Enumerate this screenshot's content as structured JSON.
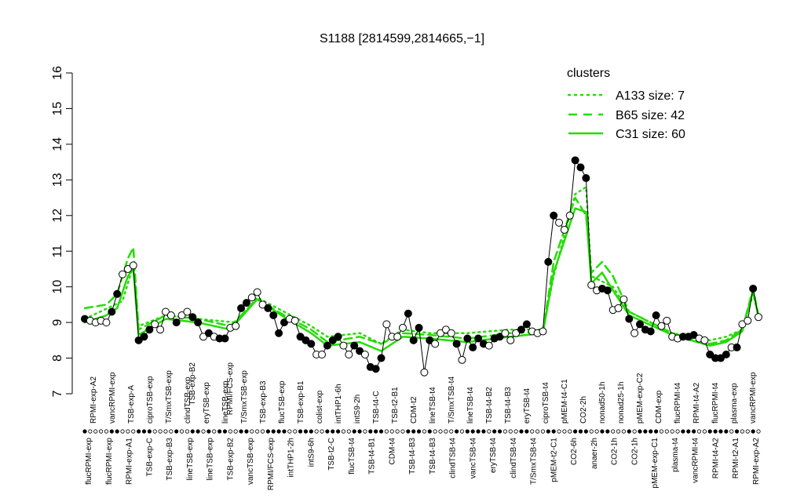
{
  "chart_data": {
    "type": "line",
    "title": "S1188 [2814599,2814665,−1]",
    "xlabel": "",
    "ylabel": "",
    "ylim": [
      7,
      16
    ],
    "yticks": [
      "7",
      "8",
      "9",
      "10",
      "11",
      "12",
      "13",
      "14",
      "15",
      "16"
    ],
    "grid": false,
    "legend": {
      "title": "clusters",
      "placement": "top-right",
      "color": "#22dd00",
      "entries": [
        {
          "label": "A133 size: 7",
          "style": "dotted"
        },
        {
          "label": "B65 size: 42",
          "style": "dashed"
        },
        {
          "label": "C31 size: 60",
          "style": "solid"
        }
      ]
    },
    "top_tick_labels": [
      "RPMI-exp-A2",
      "vancRPMI-exp",
      "TSB-exp-A",
      "ciproTSB-exp",
      "T/SmxTSB-exp",
      "clindTSB-exp",
      "eryTSB-exp",
      "lineTSB-exp",
      "T/SmxTSB-exp",
      "TSB-exp-B3",
      "flucTSB-exp",
      "TSB-exp-B1",
      "colist-exp",
      "intTHP1-6h",
      "intS9-2h",
      "TSB-t4-C",
      "TSB-t2-B1",
      "CDM-t2",
      "lineTSB-t4",
      "T/SmxTSB-t4",
      "lineTSB-t4",
      "TSB-t4-B2",
      "TSB-t4-B3",
      "eryTSB-t4",
      "ciproTSB-t4",
      "pMEM-t4-C1",
      "CO2-2h",
      "nonad50-1h",
      "nonad25-1h",
      "pMEM-exp-C2",
      "CDM-exp",
      "flucRPMI-t4",
      "RPMI-t4-A2",
      "flucRPMI-t4",
      "plasma-exp",
      "vancRPMI-exp"
    ],
    "bottom_tick_labels": [
      "flucRPMI-exp",
      "flucRPMI-exp",
      "RPMI-exp-A1",
      "TSB-exp-C",
      "TSB-exp-B3",
      "lineTSB-exp",
      "lineTSB-exp",
      "TSB-exp-B2",
      "vancTSB-exp",
      "RPMI/FCS-exp",
      "intTHP1-2h",
      "intS9-6h",
      "TSB-t2-C",
      "flucTSB-t4",
      "TSB-t4-B1",
      "CDM-t4",
      "TSB-t4-B3",
      "TSB-t4-B3",
      "clindTSB-t4",
      "vancTSB-t4",
      "eryTSB-t4",
      "clindTSB-t4",
      "T/SmxTSB-t4",
      "pMEM-t2-C1",
      "CO2-6h",
      "anaer-2h",
      "CO2-1h",
      "CO2-1h",
      "pMEM-exp-C1",
      "plasma-t4",
      "vancRPMI-t4",
      "RPMI-t4-A2",
      "RPMI-t2-A1",
      "RPMI-exp-A2"
    ],
    "overlap_tick_labels": [
      "TSB-exp-B2",
      "RPMI/FCS-exp"
    ],
    "points": [
      [
        1,
        9.1,
        1
      ],
      [
        2,
        9.05,
        0
      ],
      [
        3,
        9.0,
        0
      ],
      [
        4,
        9.05,
        0
      ],
      [
        5,
        9.0,
        0
      ],
      [
        6,
        9.3,
        1
      ],
      [
        7,
        9.8,
        1
      ],
      [
        8,
        10.35,
        0
      ],
      [
        9,
        10.5,
        0
      ],
      [
        10,
        10.6,
        0
      ],
      [
        11,
        8.5,
        1
      ],
      [
        12,
        8.6,
        1
      ],
      [
        13,
        8.8,
        1
      ],
      [
        14,
        8.95,
        0
      ],
      [
        15,
        8.8,
        0
      ],
      [
        16,
        9.3,
        0
      ],
      [
        17,
        9.2,
        0
      ],
      [
        18,
        9.0,
        1
      ],
      [
        19,
        9.2,
        0
      ],
      [
        20,
        9.3,
        0
      ],
      [
        21,
        9.15,
        1
      ],
      [
        22,
        9.0,
        1
      ],
      [
        23,
        8.6,
        0
      ],
      [
        24,
        8.7,
        1
      ],
      [
        25,
        8.6,
        0
      ],
      [
        26,
        8.55,
        1
      ],
      [
        27,
        8.55,
        1
      ],
      [
        28,
        8.85,
        0
      ],
      [
        29,
        8.9,
        0
      ],
      [
        30,
        9.4,
        1
      ],
      [
        31,
        9.55,
        1
      ],
      [
        32,
        9.7,
        0
      ],
      [
        33,
        9.85,
        0
      ],
      [
        34,
        9.5,
        0
      ],
      [
        35,
        9.4,
        1
      ],
      [
        36,
        9.2,
        1
      ],
      [
        37,
        8.7,
        1
      ],
      [
        38,
        9.0,
        1
      ],
      [
        39,
        9.1,
        0
      ],
      [
        40,
        9.05,
        0
      ],
      [
        41,
        8.6,
        1
      ],
      [
        42,
        8.5,
        1
      ],
      [
        43,
        8.4,
        1
      ],
      [
        44,
        8.1,
        0
      ],
      [
        45,
        8.1,
        0
      ],
      [
        46,
        8.35,
        1
      ],
      [
        47,
        8.5,
        1
      ],
      [
        48,
        8.6,
        1
      ],
      [
        49,
        8.35,
        0
      ],
      [
        50,
        8.1,
        0
      ],
      [
        51,
        8.35,
        1
      ],
      [
        52,
        8.2,
        1
      ],
      [
        53,
        8.1,
        0
      ],
      [
        54,
        7.75,
        1
      ],
      [
        55,
        7.7,
        1
      ],
      [
        56,
        8.0,
        1
      ],
      [
        57,
        8.95,
        0
      ],
      [
        58,
        8.6,
        0
      ],
      [
        59,
        8.6,
        0
      ],
      [
        60,
        8.85,
        0
      ],
      [
        61,
        9.25,
        1
      ],
      [
        62,
        8.5,
        1
      ],
      [
        63,
        8.85,
        1
      ],
      [
        64,
        7.6,
        0
      ],
      [
        65,
        8.5,
        1
      ],
      [
        66,
        8.4,
        0
      ],
      [
        67,
        8.7,
        0
      ],
      [
        68,
        8.8,
        0
      ],
      [
        69,
        8.7,
        0
      ],
      [
        70,
        8.4,
        1
      ],
      [
        71,
        7.95,
        0
      ],
      [
        72,
        8.55,
        1
      ],
      [
        73,
        8.3,
        1
      ],
      [
        74,
        8.55,
        1
      ],
      [
        75,
        8.4,
        1
      ],
      [
        76,
        8.35,
        0
      ],
      [
        77,
        8.55,
        1
      ],
      [
        78,
        8.6,
        1
      ],
      [
        79,
        8.7,
        0
      ],
      [
        80,
        8.5,
        0
      ],
      [
        81,
        8.7,
        0
      ],
      [
        82,
        8.8,
        1
      ],
      [
        83,
        8.95,
        1
      ],
      [
        84,
        8.75,
        0
      ],
      [
        85,
        8.7,
        0
      ],
      [
        86,
        8.75,
        0
      ],
      [
        87,
        10.7,
        1
      ],
      [
        88,
        12.0,
        1
      ],
      [
        89,
        11.8,
        0
      ],
      [
        90,
        11.6,
        0
      ],
      [
        91,
        12.0,
        0
      ],
      [
        92,
        13.55,
        1
      ],
      [
        93,
        13.35,
        1
      ],
      [
        94,
        13.05,
        1
      ],
      [
        95,
        10.05,
        0
      ],
      [
        96,
        9.9,
        0
      ],
      [
        97,
        9.95,
        1
      ],
      [
        98,
        9.9,
        1
      ],
      [
        99,
        9.35,
        0
      ],
      [
        100,
        9.4,
        0
      ],
      [
        101,
        9.65,
        0
      ],
      [
        102,
        9.1,
        1
      ],
      [
        103,
        8.7,
        0
      ],
      [
        104,
        8.95,
        1
      ],
      [
        105,
        8.8,
        1
      ],
      [
        106,
        8.75,
        1
      ],
      [
        107,
        9.2,
        1
      ],
      [
        108,
        8.9,
        0
      ],
      [
        109,
        9.05,
        0
      ],
      [
        110,
        8.6,
        0
      ],
      [
        111,
        8.55,
        0
      ],
      [
        112,
        8.6,
        1
      ],
      [
        113,
        8.6,
        1
      ],
      [
        114,
        8.65,
        1
      ],
      [
        115,
        8.55,
        0
      ],
      [
        116,
        8.5,
        0
      ],
      [
        117,
        8.1,
        1
      ],
      [
        118,
        8.0,
        1
      ],
      [
        119,
        8.0,
        1
      ],
      [
        120,
        8.1,
        1
      ],
      [
        121,
        8.3,
        0
      ],
      [
        122,
        8.3,
        1
      ],
      [
        123,
        8.95,
        0
      ],
      [
        124,
        9.05,
        0
      ],
      [
        125,
        9.95,
        1
      ],
      [
        126,
        9.15,
        0
      ]
    ],
    "series": [
      {
        "name": "A133 size: 7",
        "style": "dotted",
        "points": [
          [
            1,
            9.1
          ],
          [
            8,
            9.6
          ],
          [
            10,
            10.6
          ],
          [
            11,
            8.9
          ],
          [
            16,
            9.2
          ],
          [
            22,
            9.1
          ],
          [
            29,
            9.0
          ],
          [
            33,
            9.7
          ],
          [
            38,
            9.3
          ],
          [
            43,
            8.9
          ],
          [
            46,
            8.6
          ],
          [
            52,
            8.7
          ],
          [
            56,
            8.4
          ],
          [
            60,
            8.8
          ],
          [
            65,
            8.7
          ],
          [
            72,
            8.7
          ],
          [
            80,
            8.8
          ],
          [
            86,
            8.8
          ],
          [
            88,
            10.3
          ],
          [
            92,
            12.6
          ],
          [
            94,
            12.8
          ],
          [
            95,
            10.3
          ],
          [
            99,
            10.0
          ],
          [
            102,
            9.3
          ],
          [
            110,
            8.7
          ],
          [
            117,
            8.5
          ],
          [
            120,
            8.6
          ],
          [
            123,
            8.8
          ],
          [
            125,
            9.8
          ],
          [
            126,
            9.2
          ]
        ]
      },
      {
        "name": "B65 size: 42",
        "style": "dashed",
        "points": [
          [
            1,
            9.4
          ],
          [
            5,
            9.5
          ],
          [
            7,
            9.8
          ],
          [
            9,
            10.8
          ],
          [
            10,
            11.1
          ],
          [
            11,
            8.8
          ],
          [
            16,
            9.2
          ],
          [
            22,
            9.1
          ],
          [
            28,
            8.9
          ],
          [
            33,
            9.65
          ],
          [
            38,
            9.2
          ],
          [
            43,
            8.8
          ],
          [
            46,
            8.45
          ],
          [
            52,
            8.6
          ],
          [
            56,
            8.4
          ],
          [
            60,
            8.7
          ],
          [
            65,
            8.65
          ],
          [
            72,
            8.55
          ],
          [
            80,
            8.7
          ],
          [
            86,
            8.75
          ],
          [
            88,
            10.7
          ],
          [
            92,
            12.5
          ],
          [
            94,
            12.0
          ],
          [
            95,
            10.4
          ],
          [
            97,
            10.7
          ],
          [
            99,
            10.3
          ],
          [
            102,
            9.3
          ],
          [
            110,
            8.7
          ],
          [
            117,
            8.4
          ],
          [
            120,
            8.5
          ],
          [
            123,
            8.8
          ],
          [
            125,
            9.95
          ],
          [
            126,
            9.2
          ]
        ]
      },
      {
        "name": "C31 size: 60",
        "style": "solid",
        "points": [
          [
            1,
            9.0
          ],
          [
            5,
            9.2
          ],
          [
            7,
            9.4
          ],
          [
            9,
            10.3
          ],
          [
            10,
            10.5
          ],
          [
            11,
            8.65
          ],
          [
            16,
            9.1
          ],
          [
            22,
            9.0
          ],
          [
            28,
            8.8
          ],
          [
            33,
            9.65
          ],
          [
            38,
            9.15
          ],
          [
            43,
            8.7
          ],
          [
            46,
            8.35
          ],
          [
            52,
            8.45
          ],
          [
            56,
            8.2
          ],
          [
            60,
            8.6
          ],
          [
            65,
            8.55
          ],
          [
            72,
            8.45
          ],
          [
            80,
            8.6
          ],
          [
            86,
            8.7
          ],
          [
            88,
            10.4
          ],
          [
            92,
            12.2
          ],
          [
            94,
            12.1
          ],
          [
            95,
            10.1
          ],
          [
            97,
            10.4
          ],
          [
            99,
            9.9
          ],
          [
            102,
            9.2
          ],
          [
            110,
            8.65
          ],
          [
            117,
            8.35
          ],
          [
            120,
            8.45
          ],
          [
            123,
            8.75
          ],
          [
            125,
            9.9
          ],
          [
            126,
            9.15
          ]
        ]
      }
    ]
  }
}
